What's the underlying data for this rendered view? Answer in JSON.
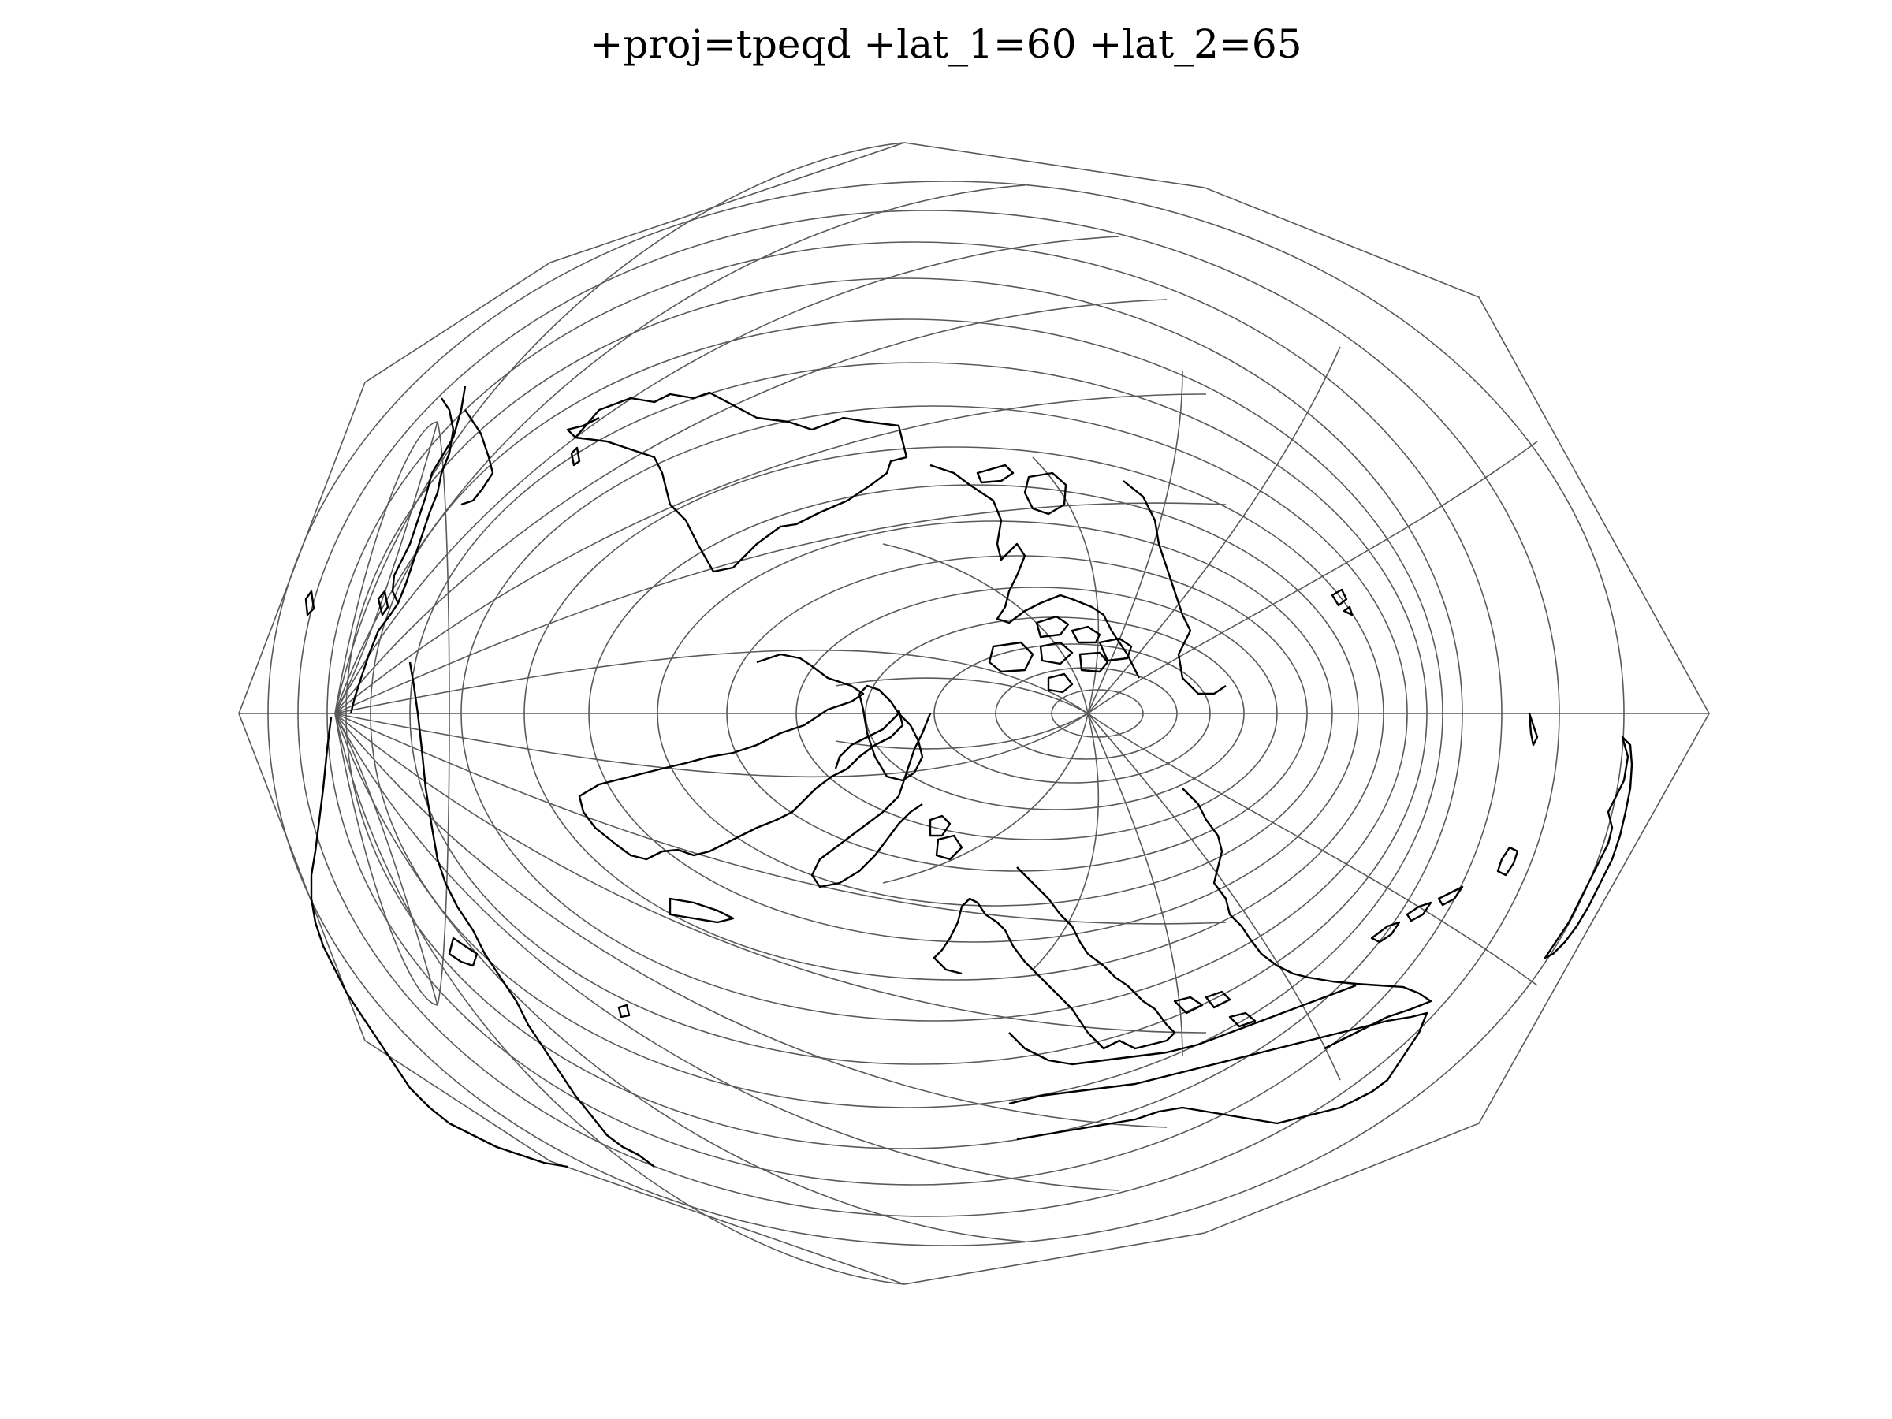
{
  "map": {
    "title": "+proj=tpeqd +lat_1=60 +lat_2=65",
    "projection": "two-point equidistant",
    "graticule_color": "#5a5a5a",
    "coastline_color": "#000000",
    "background_color": "#ffffff"
  }
}
